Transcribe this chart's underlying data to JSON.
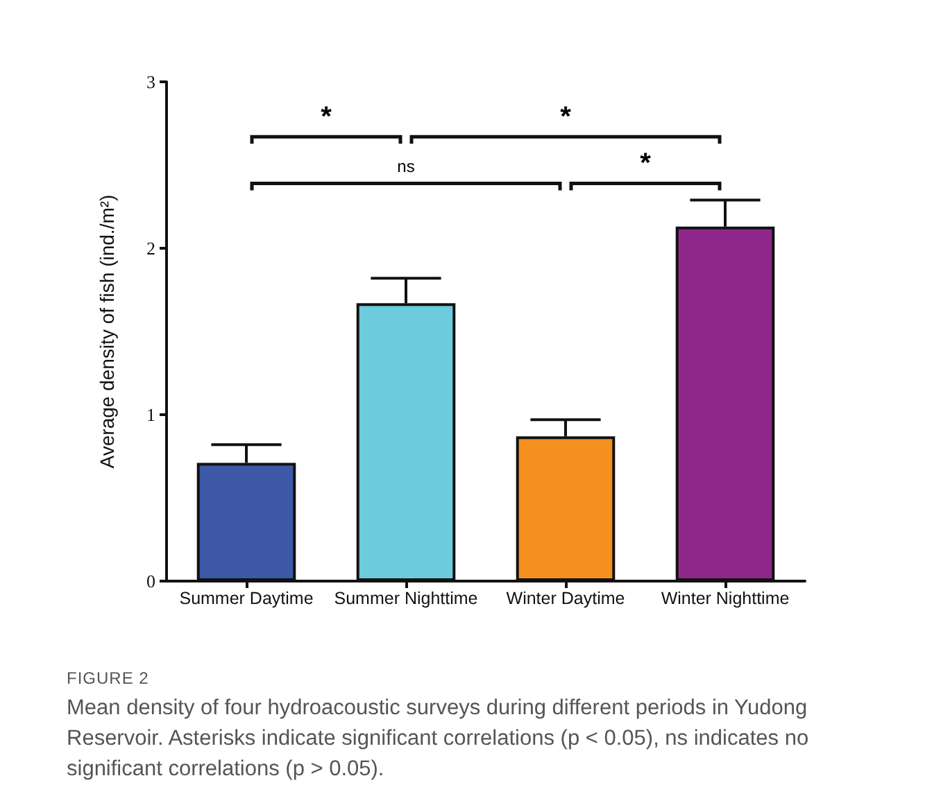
{
  "chart_data": {
    "type": "bar",
    "title": "FIGURE 2",
    "subtitle": "Mean density of four hydroacoustic surveys during different periods in Yudong Reservoir. Asterisks indicate significant correlations (p < 0.05), ns indicates no significant correlations (p > 0.05).",
    "ylabel": "Average density of fish (ind./m²)",
    "categories": [
      "Summer Daytime",
      "Summer Nighttime",
      "Winter Daytime",
      "Winter Nighttime"
    ],
    "values": [
      0.71,
      1.67,
      0.87,
      2.13
    ],
    "colors": [
      "#3d58a6",
      "#6ccbdc",
      "#f4911e",
      "#8f278b"
    ],
    "errors": [
      [
        0.71,
        0.82
      ],
      [
        1.67,
        1.82
      ],
      [
        0.87,
        0.97
      ],
      [
        2.13,
        2.29
      ]
    ],
    "ylim": [
      0,
      3
    ],
    "yticks": [
      0,
      1,
      2,
      3
    ],
    "annotations": [
      "*",
      "*",
      "ns",
      "*"
    ],
    "grid": false
  }
}
